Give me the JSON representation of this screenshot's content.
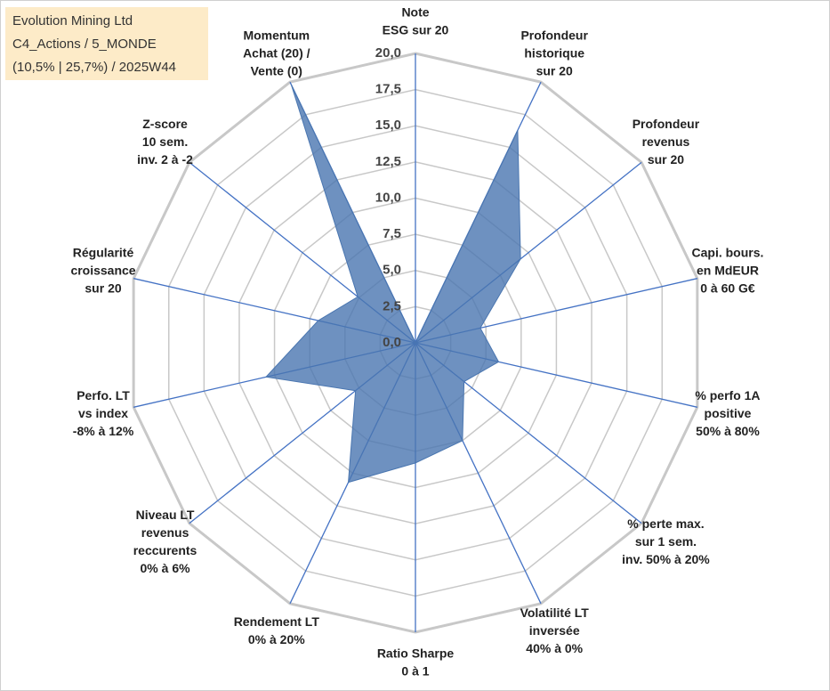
{
  "chart_data": {
    "type": "radar",
    "title": "Evolution Mining Ltd",
    "subtitle": [
      "C4_Actions / 5_MONDE",
      "(10,5% | 25,7%) / 2025W44"
    ],
    "categories": [
      [
        "Note",
        "ESG sur 20"
      ],
      [
        "Profondeur",
        "historique",
        "sur 20"
      ],
      [
        "Profondeur",
        "revenus",
        "sur 20"
      ],
      [
        "Capi. bours.",
        "en MdEUR",
        "0 à 60 G€"
      ],
      [
        "% perfo 1A",
        "positive",
        "50% à 80%"
      ],
      [
        "% perte max.",
        "sur 1 sem.",
        "inv. 50% à 20%"
      ],
      [
        "Volatilité LT",
        "inversée",
        "40% à 0%"
      ],
      [
        "Ratio Sharpe",
        "0 à 1"
      ],
      [
        "Rendement LT",
        "0% à 20%"
      ],
      [
        "Niveau LT",
        "revenus",
        "reccurents",
        "0% à 6%"
      ],
      [
        "Perfo. LT",
        "vs index",
        "-8% à 12%"
      ],
      [
        "Régularité",
        "croissance",
        "sur 20"
      ],
      [
        "Z-score",
        "10 sem.",
        "inv. 2 à -2"
      ],
      [
        "Momentum",
        "Achat (20) /",
        "Vente (0)"
      ]
    ],
    "values": [
      0,
      16.3,
      9.3,
      4.6,
      5.9,
      4.3,
      7.5,
      8.3,
      10.7,
      5.3,
      10.6,
      6.9,
      5.1,
      19.8
    ],
    "color": "#4a76b0",
    "ylim": [
      0,
      20
    ],
    "yticks": [
      {
        "value": 0,
        "label": "0,0"
      },
      {
        "value": 2.5,
        "label": "2,5"
      },
      {
        "value": 5,
        "label": "5,0"
      },
      {
        "value": 7.5,
        "label": "7,5"
      },
      {
        "value": 10,
        "label": "10,0"
      },
      {
        "value": 12.5,
        "label": "12,5"
      },
      {
        "value": 15,
        "label": "15,0"
      },
      {
        "value": 17.5,
        "label": "17,5"
      },
      {
        "value": 20,
        "label": "20,0"
      }
    ],
    "grid": true
  }
}
